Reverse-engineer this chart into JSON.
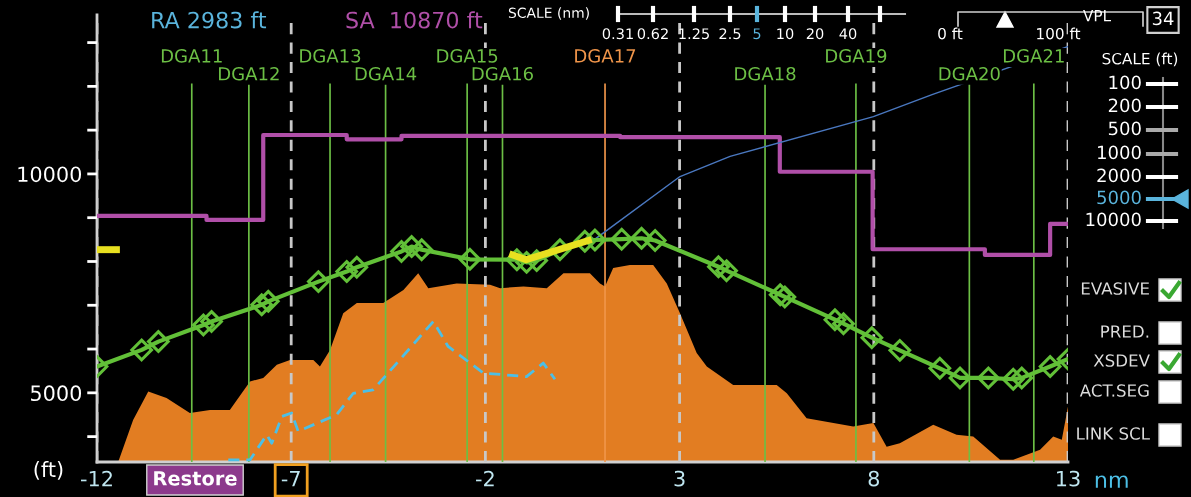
{
  "chart_data": {
    "type": "line",
    "xlabel": "nm",
    "ylabel": "(ft)",
    "xlim": [
      -12,
      13
    ],
    "xticks": [
      -12,
      -7,
      -2,
      3,
      8,
      13
    ],
    "ylim": [
      3420,
      13630
    ],
    "yticks": [
      {
        "value": 4000,
        "label": null
      },
      5000,
      {
        "value": 6000,
        "label": null
      },
      {
        "value": 7000,
        "label": null
      },
      {
        "value": 8000,
        "label": null
      },
      {
        "value": 9000,
        "label": null
      },
      10000,
      {
        "value": 11000,
        "label": null
      },
      {
        "value": 12000,
        "label": null
      },
      {
        "value": 13000,
        "label": null
      }
    ],
    "grid": "x",
    "series": [
      {
        "type": "area",
        "color": "#e27d22",
        "x": [
          -11.45,
          -11.07,
          -10.68,
          -10.21,
          -9.61,
          -9.09,
          -8.58,
          -8.06,
          -7.72,
          -7.37,
          -7.03,
          -6.43,
          -6.26,
          -6.0,
          -5.66,
          -5.31,
          -4.63,
          -4.11,
          -3.73,
          -3.47,
          -2.74,
          -1.88,
          -1.62,
          -1.02,
          -0.42,
          0.01,
          0.69,
          0.95,
          1.08,
          1.29,
          1.72,
          2.32,
          2.67,
          3.01,
          3.44,
          3.7,
          4.38,
          5.5,
          5.76,
          6.27,
          7.47,
          7.99,
          8.33,
          8.67,
          9.53,
          10.13,
          10.56,
          11.25,
          11.59,
          12.28,
          12.62,
          12.84,
          13.0
        ],
        "values": [
          3430,
          4380,
          5030,
          4880,
          4540,
          4610,
          4610,
          5260,
          5340,
          5640,
          5750,
          5750,
          5600,
          5980,
          6820,
          7050,
          7050,
          7350,
          7730,
          7390,
          7500,
          7470,
          7390,
          7430,
          7390,
          7730,
          7730,
          7500,
          7430,
          7850,
          7920,
          7920,
          7500,
          6820,
          5910,
          5600,
          5180,
          5180,
          4990,
          4420,
          4230,
          4310,
          3770,
          3850,
          4270,
          4040,
          4000,
          3470,
          3470,
          3700,
          4000,
          3930,
          4690
        ]
      },
      {
        "type": "step",
        "color": "#b04fa8",
        "x": [
          -12,
          -9.18,
          -7.72,
          -5.57,
          -4.16,
          1.47,
          5.58,
          7.97,
          10.86,
          12.54,
          13
        ],
        "values": [
          9040,
          8950,
          10890,
          10790,
          10870,
          10840,
          10050,
          8280,
          8150,
          8860,
          8860
        ]
      },
      {
        "color": "#4a78c0",
        "x": [
          0.82,
          3.01,
          4.3,
          7.99,
          9.5,
          13.0
        ],
        "values": [
          8510,
          9940,
          10400,
          11310,
          11810,
          12910
        ]
      },
      {
        "color": "#4cbfe6",
        "line_style": "dashed",
        "x": [
          -8.62,
          -8.06,
          -7.63,
          -7.5,
          -7.24,
          -6.99,
          -6.82,
          -5.83,
          -5.4,
          -4.89,
          -4.28,
          -3.34,
          -2.96,
          -2.05,
          -0.94,
          -0.51,
          -0.21
        ],
        "values": [
          3470,
          3470,
          4040,
          3850,
          4460,
          4540,
          4120,
          4500,
          4990,
          5070,
          5680,
          6630,
          6060,
          5450,
          5370,
          5680,
          5310
        ]
      },
      {
        "color": "#62c038",
        "marker": "diamond",
        "x": [
          -12,
          -10.85,
          -10.42,
          -9.26,
          -9.05,
          -7.76,
          -7.59,
          -6.3,
          -5.57,
          -5.31,
          -4.16,
          -3.9,
          -3.64,
          -2.4,
          -1.19,
          -0.94,
          -0.68,
          -0.08,
          0.56,
          0.82,
          1.51,
          2.02,
          2.37,
          4.0,
          4.21,
          5.59,
          5.71,
          7.0,
          7.22,
          7.95,
          8.67,
          9.7,
          10.22,
          10.95,
          11.59,
          11.81,
          12.54,
          13.0
        ],
        "values": [
          5600,
          5980,
          6170,
          6550,
          6630,
          7010,
          7090,
          7540,
          7770,
          7870,
          8230,
          8340,
          8270,
          8050,
          8040,
          7980,
          8020,
          8270,
          8460,
          8490,
          8510,
          8530,
          8480,
          7880,
          7790,
          7240,
          7190,
          6670,
          6580,
          6260,
          5970,
          5560,
          5340,
          5340,
          5310,
          5340,
          5600,
          5770
        ]
      },
      {
        "color": "#e8e020",
        "x": [
          -1.3,
          -0.95,
          0.65
        ],
        "values": [
          8150,
          8040,
          8480
        ]
      },
      {
        "color": "#e8e020",
        "x": [
          -12,
          -11.5
        ],
        "values": [
          8270,
          8270
        ]
      }
    ],
    "ref_lines": [
      {
        "axis": "x",
        "value": -9.56,
        "label": "DGA11",
        "color": "#6cbf45"
      },
      {
        "axis": "x",
        "value": -8.09,
        "label": "DGA12",
        "color": "#6cbf45"
      },
      {
        "axis": "x",
        "value": -6.0,
        "label": "DGA13",
        "color": "#6cbf45"
      },
      {
        "axis": "x",
        "value": -4.57,
        "label": "DGA14",
        "color": "#6cbf45"
      },
      {
        "axis": "x",
        "value": -2.47,
        "label": "DGA15",
        "color": "#6cbf45"
      },
      {
        "axis": "x",
        "value": -1.56,
        "label": "DGA16",
        "color": "#6cbf45"
      },
      {
        "axis": "x",
        "value": 1.08,
        "label": "DGA17",
        "color": "#f0954a"
      },
      {
        "axis": "x",
        "value": 5.2,
        "label": "DGA18",
        "color": "#6cbf45"
      },
      {
        "axis": "x",
        "value": 7.54,
        "label": "DGA19",
        "color": "#6cbf45"
      },
      {
        "axis": "x",
        "value": 10.46,
        "label": "DGA20",
        "color": "#6cbf45"
      },
      {
        "axis": "x",
        "value": 12.12,
        "label": "DGA21",
        "color": "#6cbf45"
      }
    ],
    "annotations": [
      "RA 2983 ft",
      "SA  10870 ft",
      "SCALE (nm)",
      "0.31",
      "0.62",
      "1.25",
      "2.5",
      "5",
      "10",
      "20",
      "40",
      "0 ft",
      "100 ft",
      "VPL",
      "34",
      "SCALE (ft)",
      "100",
      "200",
      "500",
      "1000",
      "2000",
      "5000",
      "10000",
      "EVASIVE",
      "PRED.",
      "XSDEV",
      "ACT.SEG",
      "LINK SCL",
      "Restore"
    ]
  }
}
